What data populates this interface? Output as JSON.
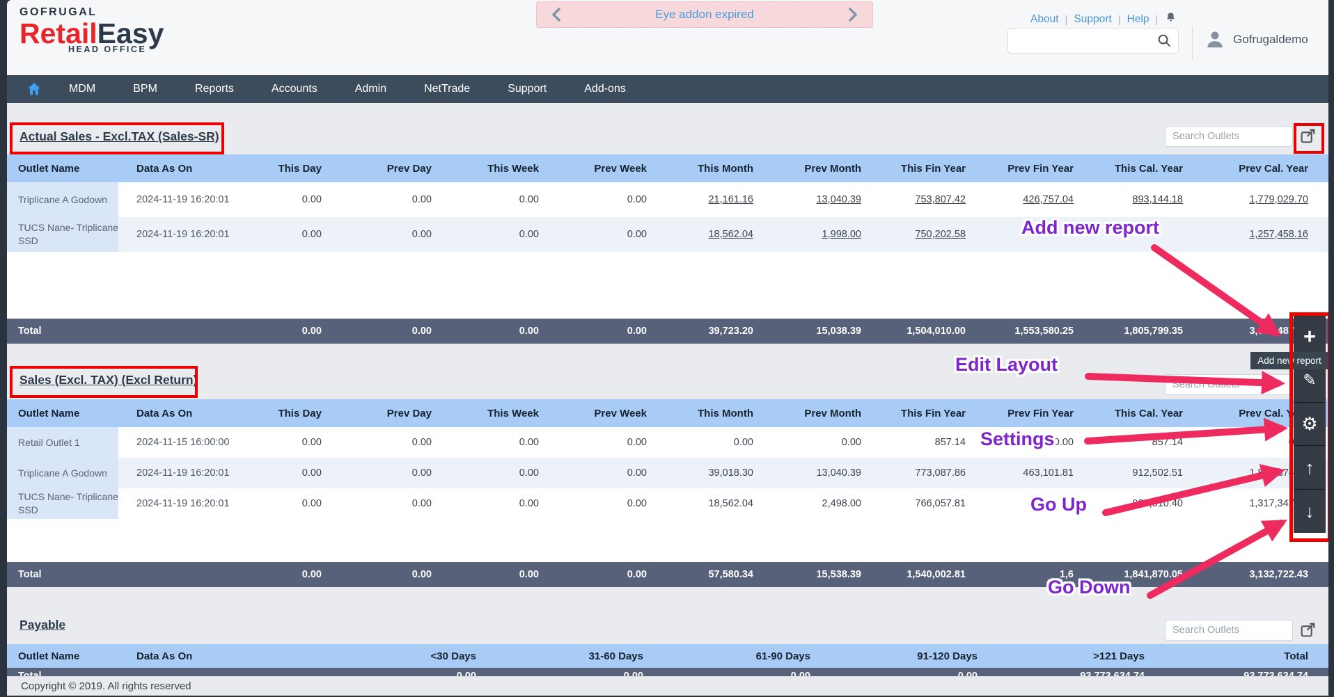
{
  "header": {
    "logo": {
      "brand": "GOFRUGAL",
      "product_primary": "Retail",
      "product_secondary": "Easy",
      "tagline": "HEAD OFFICE"
    },
    "banner": {
      "text": "Eye addon expired"
    },
    "links": [
      "About",
      "Support",
      "Help"
    ],
    "search_value": "",
    "username": "Gofrugaldemo"
  },
  "nav": {
    "items": [
      "MDM",
      "BPM",
      "Reports",
      "Accounts",
      "Admin",
      "NetTrade",
      "Support",
      "Add-ons"
    ]
  },
  "reports": [
    {
      "title": "Actual Sales - Excl.TAX (Sales-SR)",
      "search_placeholder": "Search Outlets",
      "columns": [
        "Outlet Name",
        "Data As On",
        "This Day",
        "Prev Day",
        "This Week",
        "Prev Week",
        "This Month",
        "Prev Month",
        "This Fin Year",
        "Prev Fin Year",
        "This Cal. Year",
        "Prev Cal. Year"
      ],
      "rows": [
        {
          "outlet": "Triplicane A Godown",
          "data_as_on": "2024-11-19 16:20:01",
          "values": [
            "0.00",
            "0.00",
            "0.00",
            "0.00",
            "21,161.16",
            "13,040.39",
            "753,807.42",
            "426,757.04",
            "893,144.18",
            "1,779,029.70"
          ]
        },
        {
          "outlet": "TUCS Nane- Triplicane SSD",
          "data_as_on": "2024-11-19 16:20:01",
          "values": [
            "0.00",
            "0.00",
            "0.00",
            "0.00",
            "18,562.04",
            "1,998.00",
            "750,202.58",
            "",
            "",
            "1,257,458.16"
          ]
        }
      ],
      "total": {
        "label": "Total",
        "values": [
          "0.00",
          "0.00",
          "0.00",
          "0.00",
          "39,723.20",
          "15,038.39",
          "1,504,010.00",
          "1,553,580.25",
          "1,805,799.35",
          "3,036,487.86"
        ]
      }
    },
    {
      "title": "Sales (Excl. TAX) (Excl Return)",
      "search_placeholder": "Search Outlets",
      "columns": [
        "Outlet Name",
        "Data As On",
        "This Day",
        "Prev Day",
        "This Week",
        "Prev Week",
        "This Month",
        "Prev Month",
        "This Fin Year",
        "Prev Fin Year",
        "This Cal. Year",
        "Prev Cal. Year"
      ],
      "rows": [
        {
          "outlet": "Retail Outlet 1",
          "data_as_on": "2024-11-15 16:00:00",
          "values": [
            "0.00",
            "0.00",
            "0.00",
            "0.00",
            "0.00",
            "0.00",
            "857.14",
            "0.00",
            "857.14",
            "0.00"
          ]
        },
        {
          "outlet": "Triplicane A Godown",
          "data_as_on": "2024-11-19 16:20:01",
          "values": [
            "0.00",
            "0.00",
            "0.00",
            "0.00",
            "39,018.30",
            "13,040.39",
            "773,087.86",
            "463,101.81",
            "912,502.51",
            "1,815,374.47"
          ]
        },
        {
          "outlet": "TUCS Nane- Triplicane SSD",
          "data_as_on": "2024-11-19 16:20:01",
          "values": [
            "0.00",
            "0.00",
            "0.00",
            "0.00",
            "18,562.04",
            "2,498.00",
            "766,057.81",
            "",
            "928,510.40",
            "1,317,347.96"
          ]
        }
      ],
      "total": {
        "label": "Total",
        "values": [
          "0.00",
          "0.00",
          "0.00",
          "0.00",
          "57,580.34",
          "15,538.39",
          "1,540,002.81",
          "1,6",
          "1,841,870.05",
          "3,132,722.43"
        ]
      }
    },
    {
      "title": "Payable",
      "search_placeholder": "Search Outlets",
      "columns": [
        "Outlet Name",
        "Data As On",
        "<30 Days",
        "31-60 Days",
        "61-90 Days",
        "91-120 Days",
        ">121 Days",
        "Total"
      ],
      "rows": [],
      "total": {
        "label": "Total",
        "values": [
          "0.00",
          "0.00",
          "0.00",
          "0.00",
          "93,773,634.74",
          "93,773,634.74"
        ]
      }
    }
  ],
  "toolbar": {
    "tooltip": "Add new report",
    "buttons": [
      {
        "name": "add-new-report",
        "icon": "plus"
      },
      {
        "name": "edit-layout",
        "icon": "pencil"
      },
      {
        "name": "settings",
        "icon": "gear"
      },
      {
        "name": "go-up",
        "icon": "arrow-up"
      },
      {
        "name": "go-down",
        "icon": "arrow-down"
      }
    ]
  },
  "annotations": {
    "labels": [
      "Add new report",
      "Edit Layout",
      "Settings",
      "Go Up",
      "Go Down"
    ]
  },
  "footer": {
    "copyright": "Copyright © 2019. All rights reserved"
  },
  "colors": {
    "accent_red": "#ee0000",
    "annotation_purple": "#7d26cb",
    "arrow_pink": "#ee2b5e",
    "table_header_blue": "#a8ccf6",
    "total_row_slate": "#57627a",
    "nav_slate": "#3d4c5c",
    "link_blue": "#4d94d0",
    "banner_pink": "#f7d9dc"
  }
}
